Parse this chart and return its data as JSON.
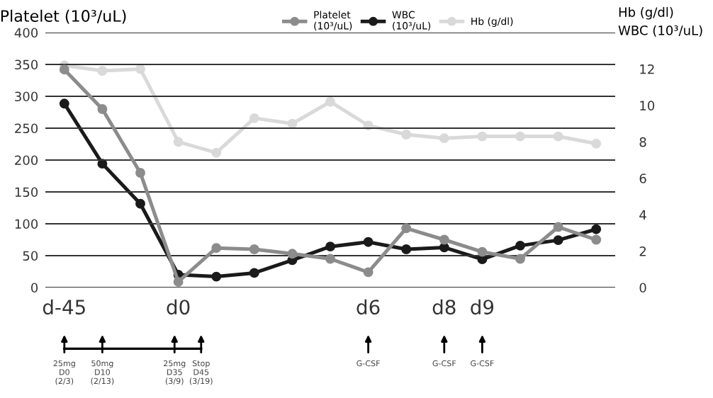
{
  "chart_data": {
    "type": "line",
    "ylabel": "Platelet (10³/uL)",
    "y2label": "Hb (g/dl)\nWBC (10³/uL)",
    "categories": [
      "d-45",
      null,
      null,
      "d0",
      null,
      null,
      null,
      null,
      "d6",
      null,
      "d8",
      "d9",
      null,
      null,
      null
    ],
    "series": [
      {
        "name": "Platelet\n(10³/uL)",
        "color": "#8c8c8c",
        "values": [
          342,
          280,
          180,
          9,
          62,
          60,
          53,
          45,
          24,
          93,
          75,
          56,
          45,
          95,
          75
        ]
      },
      {
        "name": "WBC\n(10³/uL)",
        "color": "#1a1a1a",
        "axis": "y2",
        "values": [
          10.1,
          6.8,
          4.6,
          0.7,
          0.6,
          0.8,
          1.5,
          2.25,
          2.5,
          2.1,
          2.2,
          1.55,
          2.3,
          2.6,
          3.2
        ]
      },
      {
        "name": "Hb (g/dl)",
        "color": "#d9d9d9",
        "axis": "y2",
        "values": [
          12.2,
          11.9,
          12.0,
          8.0,
          7.4,
          9.3,
          9.0,
          10.2,
          8.9,
          8.4,
          8.2,
          8.3,
          8.3,
          8.3,
          7.9
        ]
      }
    ],
    "ylim": [
      0,
      400
    ],
    "yticks": [
      0,
      50,
      100,
      150,
      200,
      250,
      300,
      350,
      400
    ],
    "y2lim": [
      0,
      14
    ],
    "y2ticks": [
      0,
      2,
      4,
      6,
      8,
      10,
      12
    ],
    "grid": "y",
    "legend": "top",
    "marker": "circle",
    "line_style": "solid",
    "annotations": [
      "25mg\nD0\n(2/3)",
      "50mg\nD10\n(2/13)",
      "25mg\nD35\n(3/9)",
      "Stop\nD45\n(3/19)",
      "G-CSF",
      "G-CSF",
      "G-CSF"
    ]
  }
}
